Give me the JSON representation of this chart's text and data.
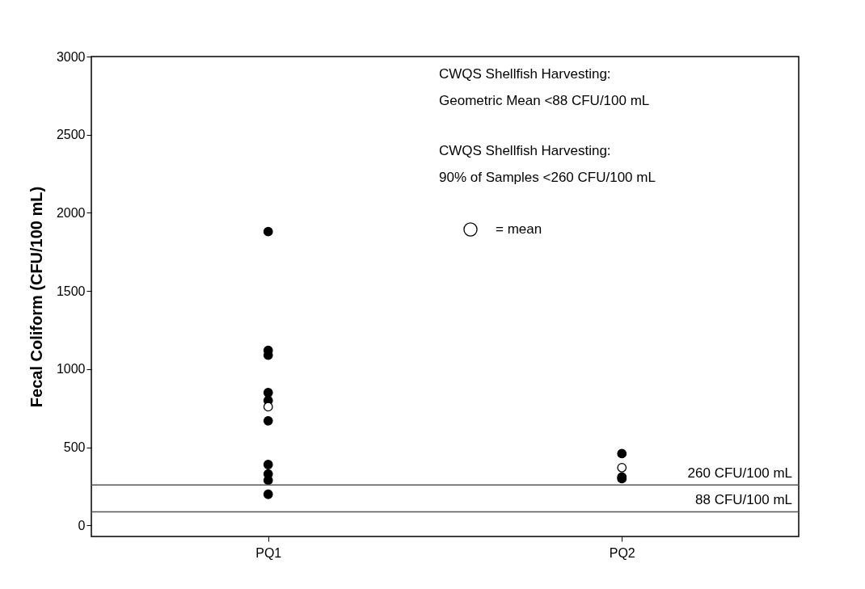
{
  "chart_data": {
    "type": "scatter",
    "ylabel": "Fecal Coliform (CFU/100 mL)",
    "categories": [
      "PQ1",
      "PQ2"
    ],
    "ylim": [
      -70,
      3000
    ],
    "yticks": [
      0,
      500,
      1000,
      1500,
      2000,
      2500,
      3000
    ],
    "grid": false,
    "legend": "top right",
    "marker": "circle",
    "series": [
      {
        "color": "#000000",
        "x": [
          "PQ1",
          "PQ1",
          "PQ1",
          "PQ1",
          "PQ1",
          "PQ1",
          "PQ1",
          "PQ1",
          "PQ1",
          "PQ1",
          "PQ2",
          "PQ2",
          "PQ2"
        ],
        "values": [
          1880,
          1090,
          1120,
          850,
          800,
          670,
          390,
          330,
          290,
          200,
          300,
          310,
          460
        ]
      },
      {
        "name": "= mean",
        "color": "#ffffff",
        "x": [
          "PQ1",
          "PQ2"
        ],
        "values": [
          760,
          370
        ]
      }
    ],
    "ref_lines": [
      {
        "axis": "y",
        "value": 260,
        "label": "260 CFU/100 mL"
      },
      {
        "axis": "y",
        "value": 88,
        "label": "88 CFU/100 mL"
      }
    ],
    "annotations": [
      "CWQS Shellfish Harvesting:\nGeometric Mean <88 CFU/100 mL",
      "CWQS Shellfish Harvesting:\n90% of Samples <260 CFU/100 mL"
    ]
  }
}
